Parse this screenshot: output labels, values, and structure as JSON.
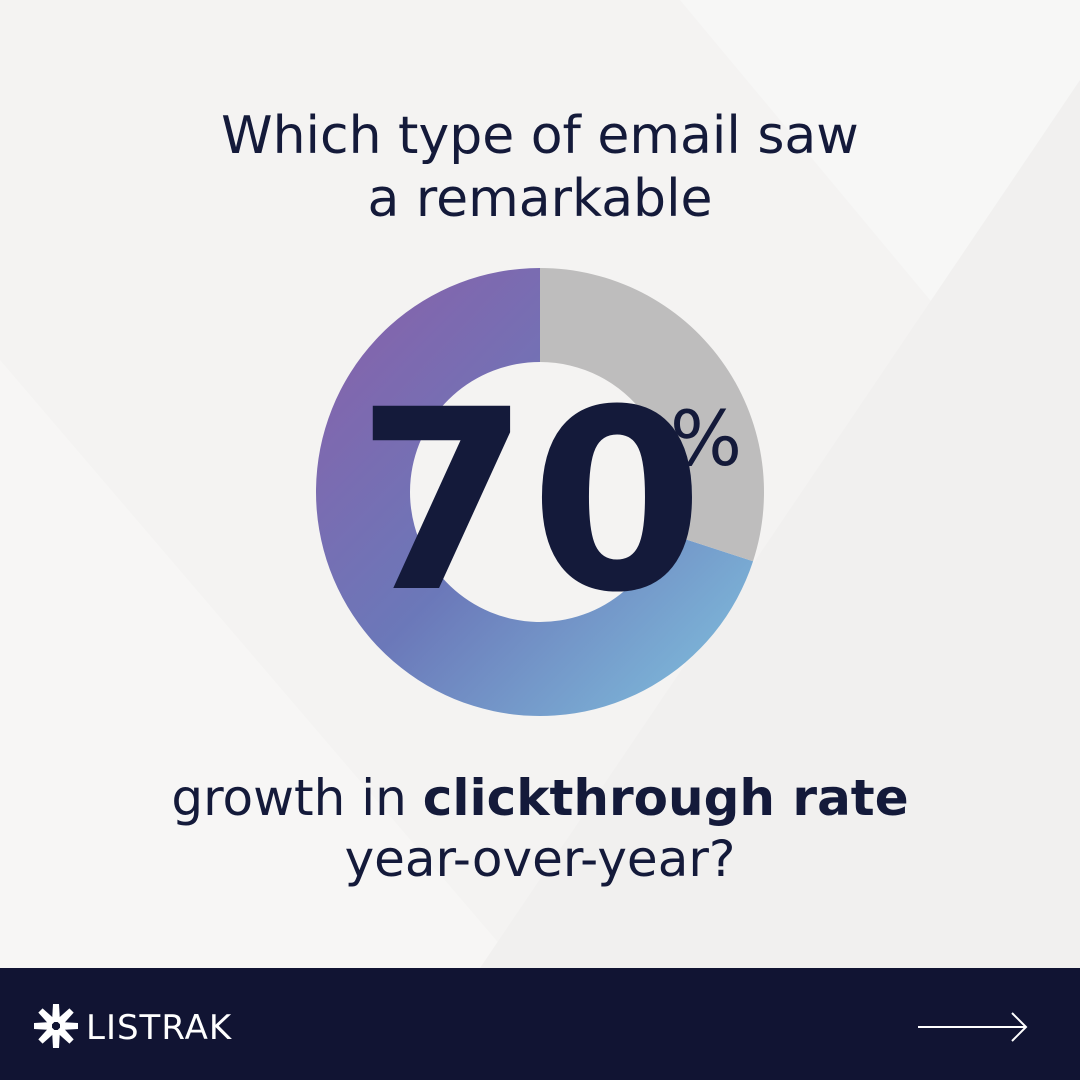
{
  "chart_data": {
    "type": "donut",
    "title_lines": [
      "Which type of email saw",
      "a remarkable"
    ],
    "values": [
      70,
      30
    ],
    "value_unit": "%",
    "colors": [
      "#8a5fa9",
      "#6b78b9",
      "#80c3df"
    ],
    "rest_color": "#bebdbd",
    "caption": {
      "before": "growth in ",
      "bold": "clickthrough rate",
      "line2": "year-over-year?"
    }
  },
  "footer": {
    "brand": "LISTRAK"
  }
}
